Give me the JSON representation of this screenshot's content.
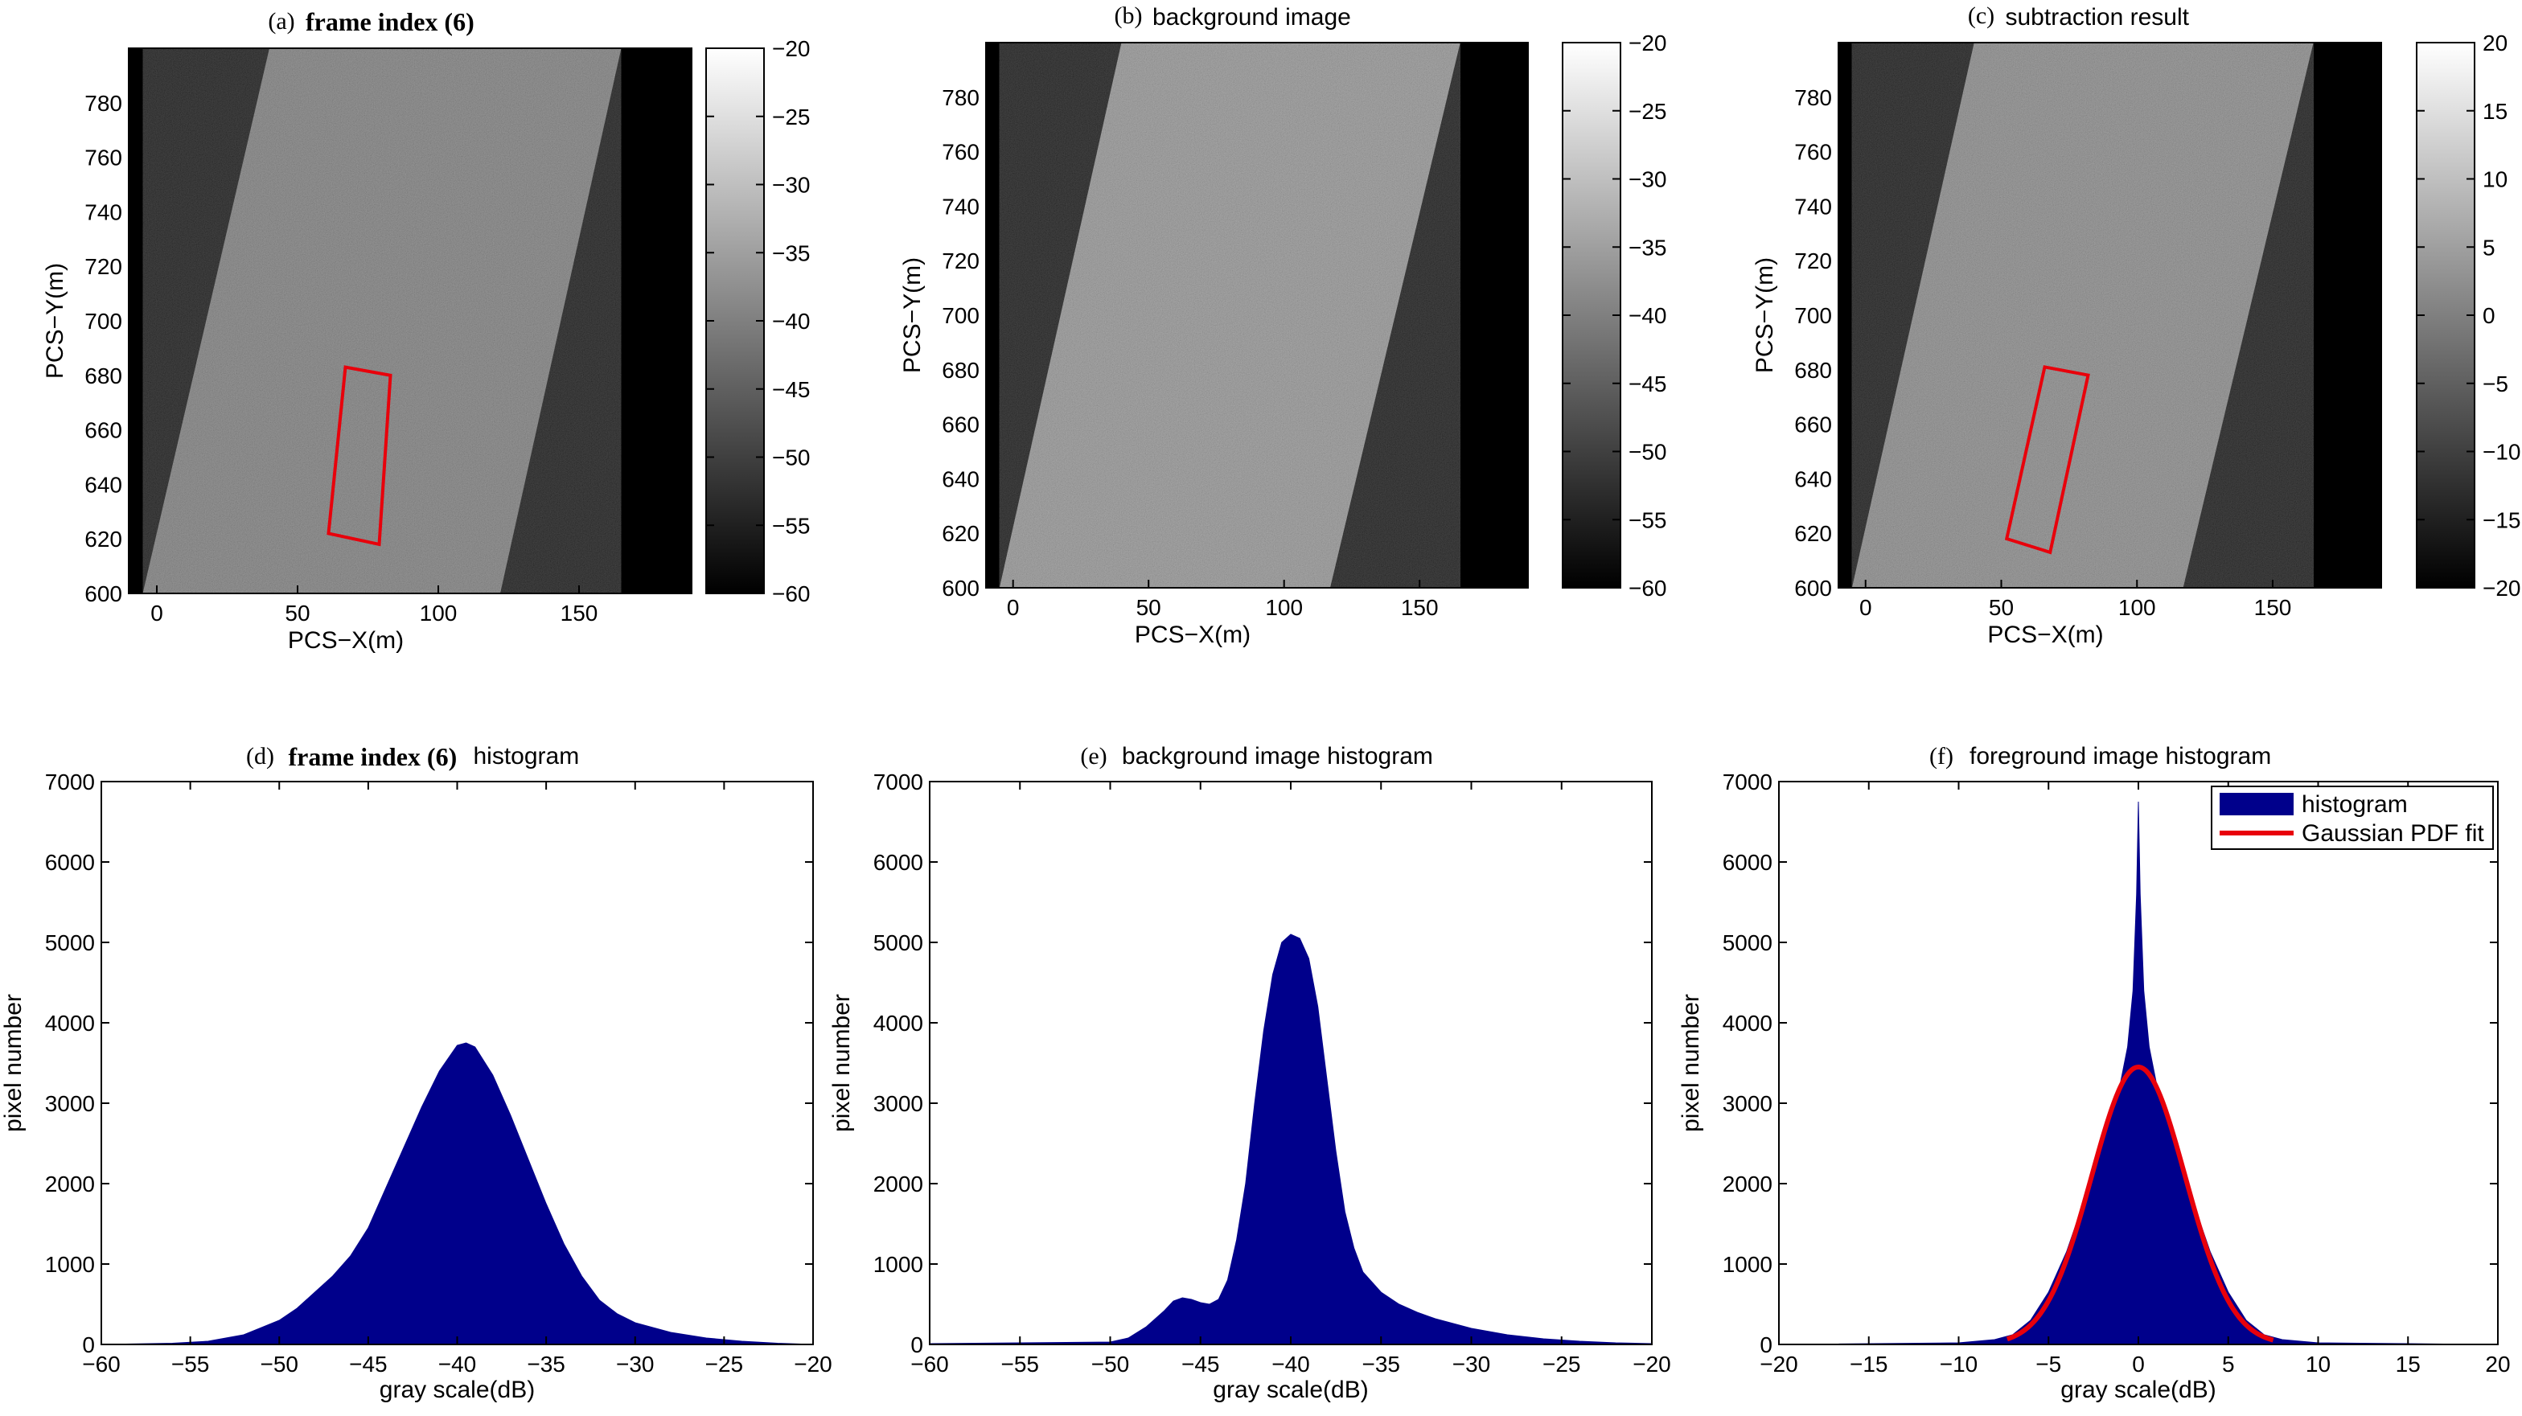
{
  "chart_data": [
    {
      "id": "a",
      "type": "heatmap",
      "panel_label": "(a)",
      "title": "frame index (6)",
      "title_bold": true,
      "xlabel": "PCS−X(m)",
      "ylabel": "PCS−Y(m)",
      "xlim": [
        -10,
        190
      ],
      "ylim": [
        600,
        800
      ],
      "xticks": [
        0,
        50,
        100,
        150
      ],
      "yticks": [
        600,
        620,
        640,
        660,
        680,
        700,
        720,
        740,
        760,
        780
      ],
      "colorbar": {
        "min": -60,
        "max": -20,
        "ticks": [
          -20,
          -25,
          -30,
          -35,
          -40,
          -45,
          -50,
          -55,
          -60
        ]
      },
      "strip": [
        [
          40,
          800
        ],
        [
          165,
          800
        ],
        [
          122,
          600
        ],
        [
          -5,
          600
        ]
      ],
      "brightness": 0.45,
      "highlight_box": {
        "color": "#e8000b",
        "points": [
          [
            61,
            622
          ],
          [
            79,
            618
          ],
          [
            83,
            680
          ],
          [
            67,
            683
          ]
        ]
      }
    },
    {
      "id": "b",
      "type": "heatmap",
      "panel_label": "(b)",
      "title": "background image",
      "title_bold": false,
      "xlabel": "PCS−X(m)",
      "ylabel": "PCS−Y(m)",
      "xlim": [
        -10,
        190
      ],
      "ylim": [
        600,
        800
      ],
      "xticks": [
        0,
        50,
        100,
        150
      ],
      "yticks": [
        600,
        620,
        640,
        660,
        680,
        700,
        720,
        740,
        760,
        780
      ],
      "colorbar": {
        "min": -60,
        "max": -20,
        "ticks": [
          -20,
          -25,
          -30,
          -35,
          -40,
          -45,
          -50,
          -55,
          -60
        ]
      },
      "strip": [
        [
          40,
          800
        ],
        [
          165,
          800
        ],
        [
          117,
          600
        ],
        [
          -5,
          600
        ]
      ],
      "brightness": 0.55
    },
    {
      "id": "c",
      "type": "heatmap",
      "panel_label": "(c)",
      "title": "subtraction result",
      "title_bold": false,
      "xlabel": "PCS−X(m)",
      "ylabel": "PCS−Y(m)",
      "xlim": [
        -10,
        190
      ],
      "ylim": [
        600,
        800
      ],
      "xticks": [
        0,
        50,
        100,
        150
      ],
      "yticks": [
        600,
        620,
        640,
        660,
        680,
        700,
        720,
        740,
        760,
        780
      ],
      "colorbar": {
        "min": -20,
        "max": 20,
        "ticks": [
          20,
          15,
          10,
          5,
          0,
          -5,
          -10,
          -15,
          -20
        ]
      },
      "strip": [
        [
          40,
          800
        ],
        [
          165,
          800
        ],
        [
          117,
          600
        ],
        [
          -5,
          600
        ]
      ],
      "brightness": 0.5,
      "highlight_box": {
        "color": "#e8000b",
        "points": [
          [
            52,
            618
          ],
          [
            68,
            613
          ],
          [
            82,
            678
          ],
          [
            66,
            681
          ]
        ]
      }
    },
    {
      "id": "d",
      "type": "bar",
      "panel_label": "(d)",
      "title": "frame index (6)",
      "title_suffix": "histogram",
      "title_bold": true,
      "xlabel": "gray scale(dB)",
      "ylabel": "pixel number",
      "xlim": [
        -60,
        -20
      ],
      "ylim": [
        0,
        7000
      ],
      "xticks": [
        -60,
        -55,
        -50,
        -45,
        -40,
        -35,
        -30,
        -25,
        -20
      ],
      "yticks": [
        0,
        1000,
        2000,
        3000,
        4000,
        5000,
        6000,
        7000
      ],
      "bar_color": "#00008b",
      "series": [
        {
          "x": [
            -60,
            -56,
            -54,
            -52,
            -50,
            -49,
            -48,
            -47,
            -46,
            -45,
            -44,
            -43,
            -42,
            -41,
            -40,
            -39.5,
            -39,
            -38,
            -37,
            -36,
            -35,
            -34,
            -33,
            -32,
            -31,
            -30,
            -28,
            -26,
            -24,
            -22,
            -20
          ],
          "values": [
            0,
            15,
            40,
            120,
            300,
            450,
            650,
            850,
            1100,
            1450,
            1950,
            2450,
            2950,
            3400,
            3720,
            3750,
            3700,
            3350,
            2850,
            2300,
            1750,
            1250,
            850,
            550,
            380,
            270,
            150,
            80,
            40,
            15,
            0
          ]
        }
      ]
    },
    {
      "id": "e",
      "type": "bar",
      "panel_label": "(e)",
      "title": "background image histogram",
      "title_bold": false,
      "xlabel": "gray scale(dB)",
      "ylabel": "pixel number",
      "xlim": [
        -60,
        -20
      ],
      "ylim": [
        0,
        7000
      ],
      "xticks": [
        -60,
        -55,
        -50,
        -45,
        -40,
        -35,
        -30,
        -25,
        -20
      ],
      "yticks": [
        0,
        1000,
        2000,
        3000,
        4000,
        5000,
        6000,
        7000
      ],
      "bar_color": "#00008b",
      "series": [
        {
          "x": [
            -60,
            -50,
            -49,
            -48,
            -47,
            -46.5,
            -46,
            -45.5,
            -45,
            -44.5,
            -44,
            -43.5,
            -43,
            -42.5,
            -42,
            -41.5,
            -41,
            -40.5,
            -40,
            -39.5,
            -39,
            -38.5,
            -38,
            -37.5,
            -37,
            -36.5,
            -36,
            -35,
            -34,
            -33,
            -32,
            -30,
            -28,
            -26,
            -24,
            -22,
            -20
          ],
          "values": [
            10,
            30,
            80,
            220,
            420,
            540,
            580,
            560,
            520,
            500,
            560,
            800,
            1300,
            2000,
            3000,
            3900,
            4600,
            5000,
            5100,
            5050,
            4800,
            4200,
            3300,
            2400,
            1650,
            1200,
            900,
            650,
            500,
            400,
            320,
            200,
            120,
            70,
            40,
            20,
            10
          ]
        }
      ]
    },
    {
      "id": "f",
      "type": "bar",
      "panel_label": "(f)",
      "title": "foreground image histogram",
      "title_bold": false,
      "xlabel": "gray scale(dB)",
      "ylabel": "pixel number",
      "xlim": [
        -20,
        20
      ],
      "ylim": [
        0,
        7000
      ],
      "xticks": [
        -20,
        -15,
        -10,
        -5,
        0,
        5,
        10,
        15,
        20
      ],
      "yticks": [
        0,
        1000,
        2000,
        3000,
        4000,
        5000,
        6000,
        7000
      ],
      "bar_color": "#00008b",
      "legend": {
        "position": "top-right",
        "entries": [
          "histogram",
          "Gaussian PDF fit"
        ]
      },
      "series": [
        {
          "name": "histogram",
          "x": [
            -20,
            -10,
            -8,
            -7,
            -6,
            -5,
            -4,
            -3,
            -2,
            -1.5,
            -1,
            -0.6,
            -0.3,
            -0.1,
            0,
            0.1,
            0.3,
            0.6,
            1,
            1.5,
            2,
            3,
            4,
            5,
            6,
            7,
            8,
            10,
            15,
            17,
            20
          ],
          "values": [
            0,
            20,
            60,
            120,
            300,
            650,
            1150,
            1800,
            2500,
            2900,
            3250,
            3700,
            4400,
            5600,
            6750,
            5600,
            4400,
            3700,
            3250,
            2900,
            2500,
            1800,
            1150,
            650,
            300,
            120,
            60,
            20,
            10,
            5,
            0
          ]
        },
        {
          "name": "Gaussian PDF fit",
          "type": "line",
          "color": "#e8000b",
          "mean": 0,
          "sigma": 2.6,
          "peak": 3450,
          "x_range": [
            -7.3,
            7.5
          ]
        }
      ]
    }
  ]
}
